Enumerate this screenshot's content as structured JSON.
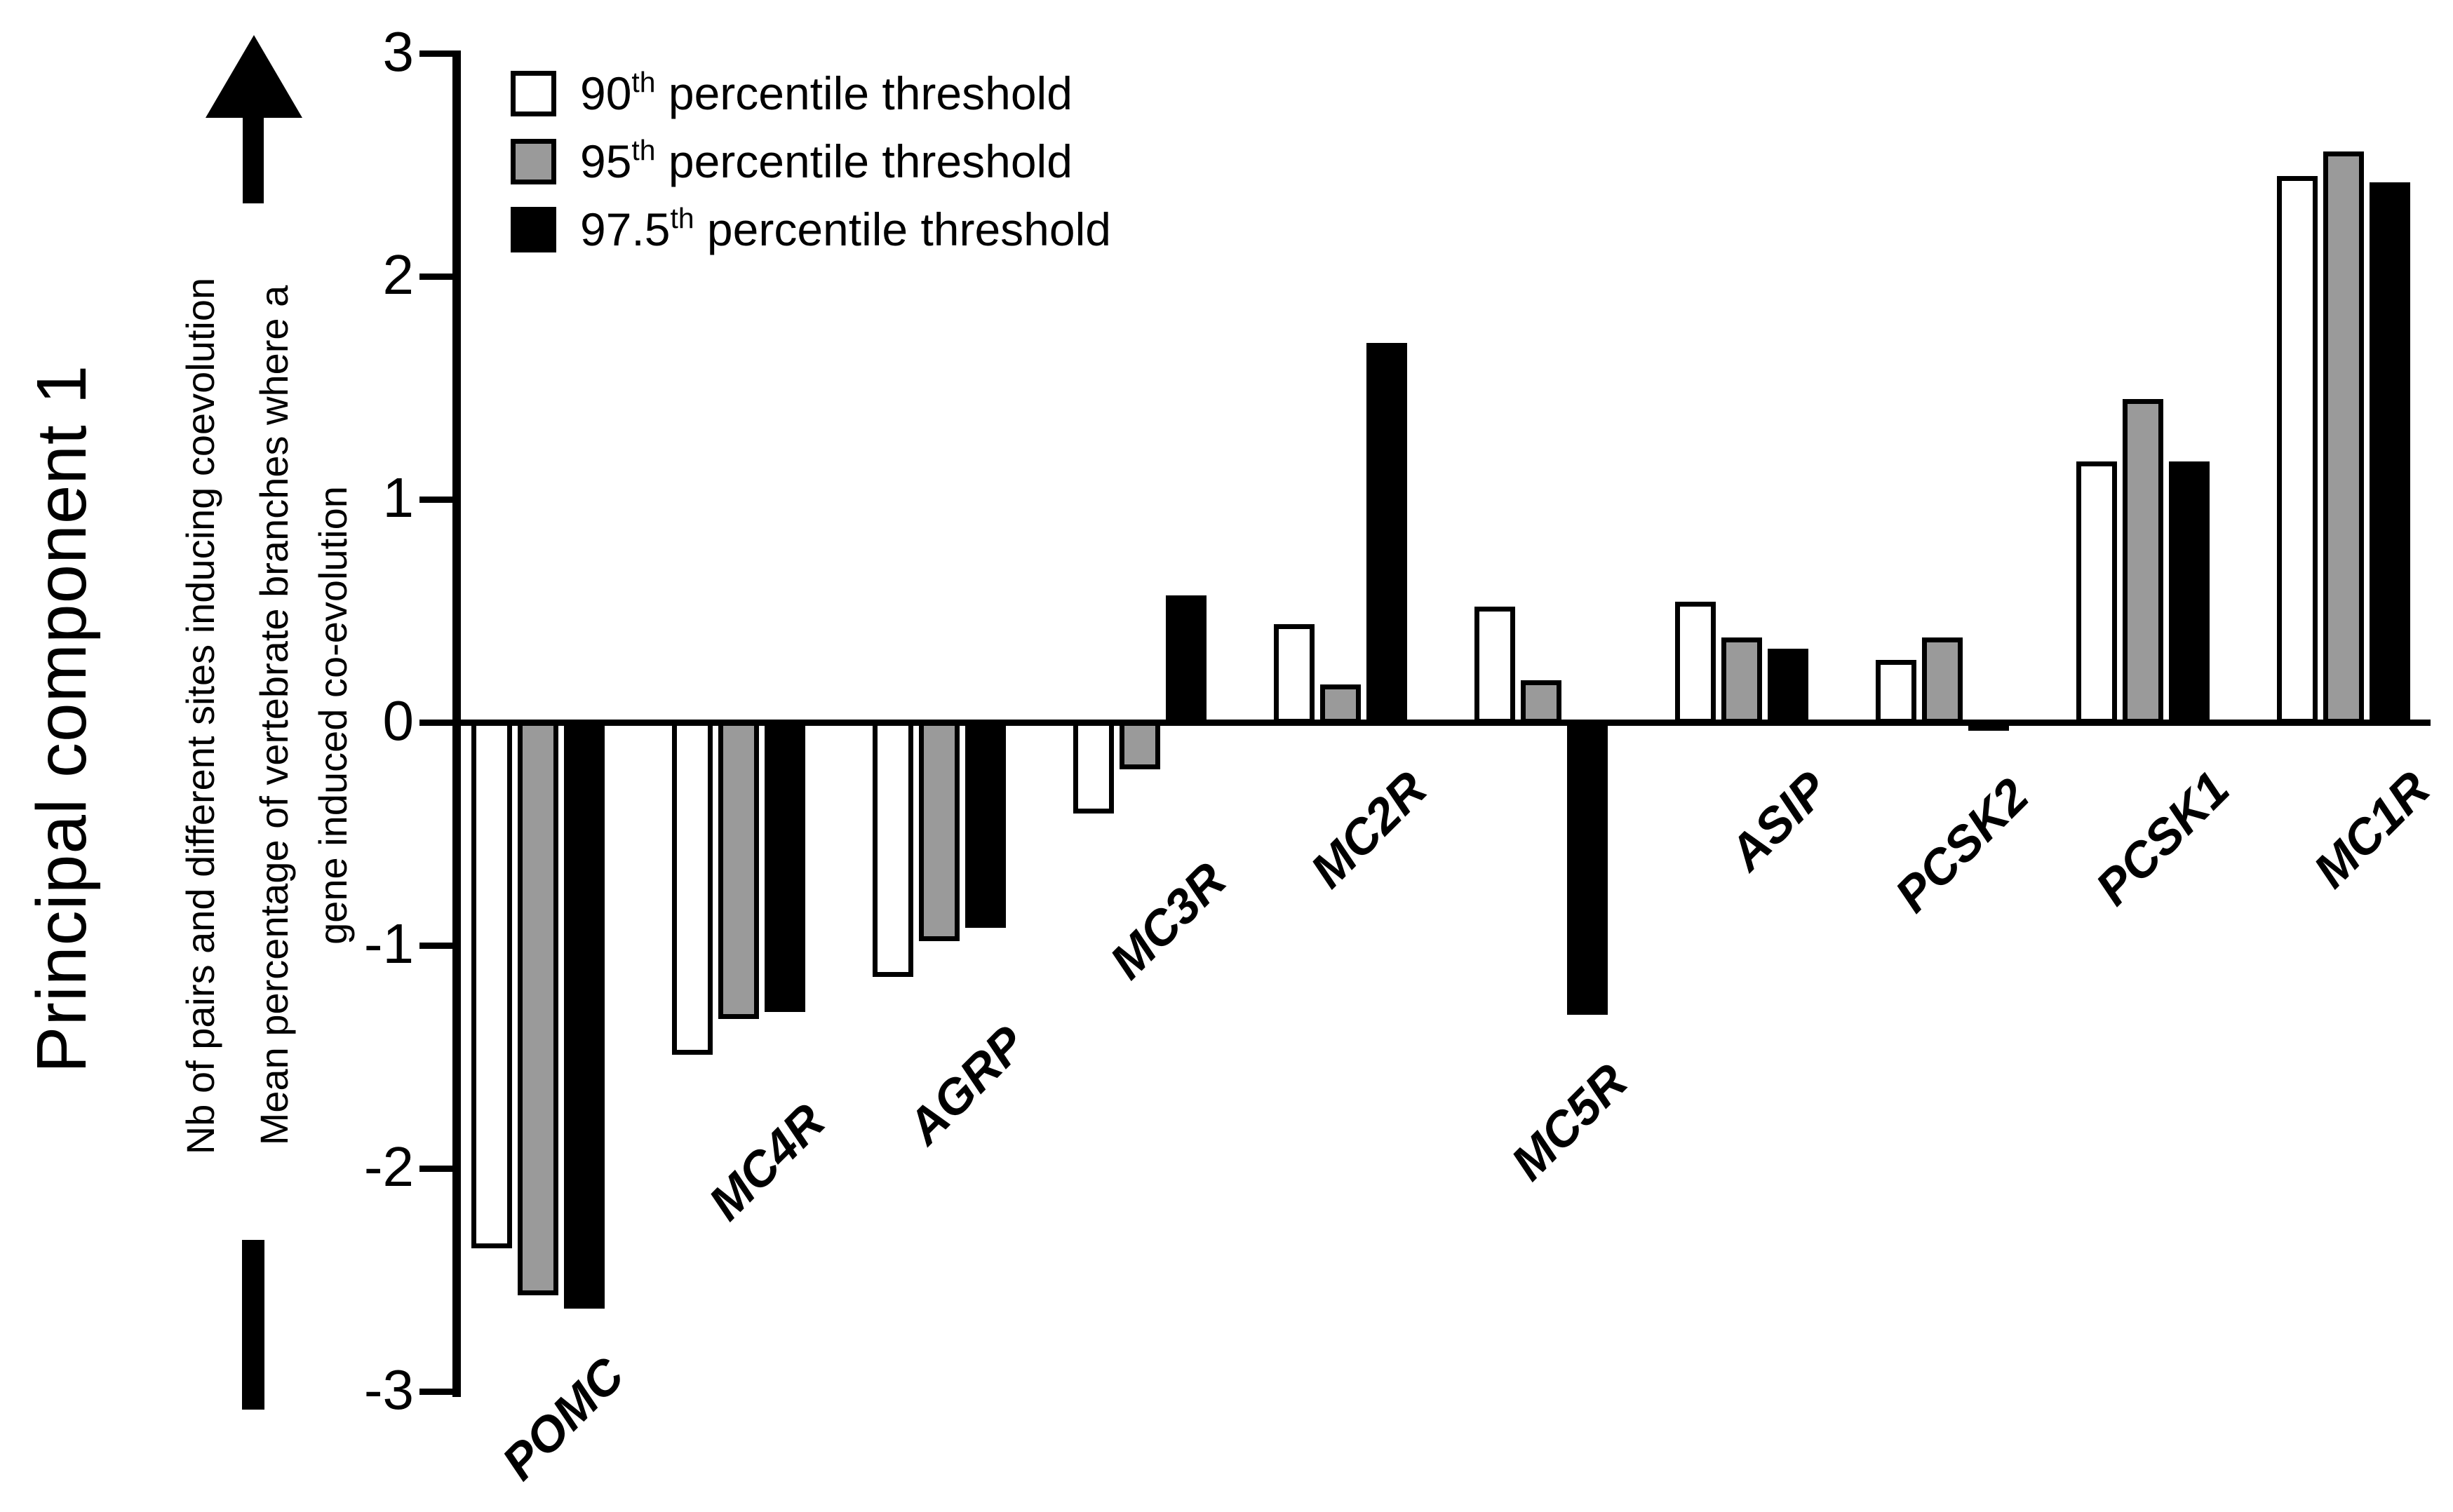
{
  "figure": {
    "y_axis_title": "Principal component 1",
    "arrow_annotation_lines": [
      "Nb of pairs and different sites inducing coevolution",
      "Mean percentage of vertebrate branches where a",
      "gene induced co-evolution"
    ],
    "legend": [
      {
        "num": "90",
        "sup": "th",
        "rest": " percentile threshold",
        "color": "#ffffff"
      },
      {
        "num": "95",
        "sup": "th",
        "rest": " percentile threshold",
        "color": "#9a9a9a"
      },
      {
        "num": "97.5",
        "sup": "th",
        "rest": " percentile threshold",
        "color": "#000000"
      }
    ]
  },
  "chart_data": {
    "type": "bar",
    "title": "",
    "ylabel": "Principal component 1",
    "xlabel": "",
    "ylim": [
      -3,
      3
    ],
    "yticks": [
      3,
      2,
      1,
      0,
      -1,
      -2,
      -3
    ],
    "grid": false,
    "legend_position": "top-left",
    "bar_outline_color": "#000000",
    "categories": [
      "POMC",
      "MC4R",
      "AGRP",
      "MC3R",
      "MC2R",
      "MC5R",
      "ASIP",
      "PCSK2",
      "PCSK1",
      "MC1R"
    ],
    "series": [
      {
        "name": "90th percentile threshold",
        "color": "#ffffff",
        "values": [
          -2.36,
          -1.49,
          -1.14,
          -0.41,
          0.44,
          0.52,
          0.54,
          0.28,
          1.17,
          2.45
        ]
      },
      {
        "name": "95th percentile threshold",
        "color": "#9a9a9a",
        "values": [
          -2.57,
          -1.33,
          -0.98,
          -0.21,
          0.17,
          0.19,
          0.38,
          0.38,
          1.45,
          2.56
        ]
      },
      {
        "name": "97.5th percentile threshold",
        "color": "#000000",
        "values": [
          -2.63,
          -1.3,
          -0.92,
          0.57,
          1.7,
          -1.31,
          0.33,
          -0.03,
          1.17,
          2.42
        ]
      }
    ]
  }
}
